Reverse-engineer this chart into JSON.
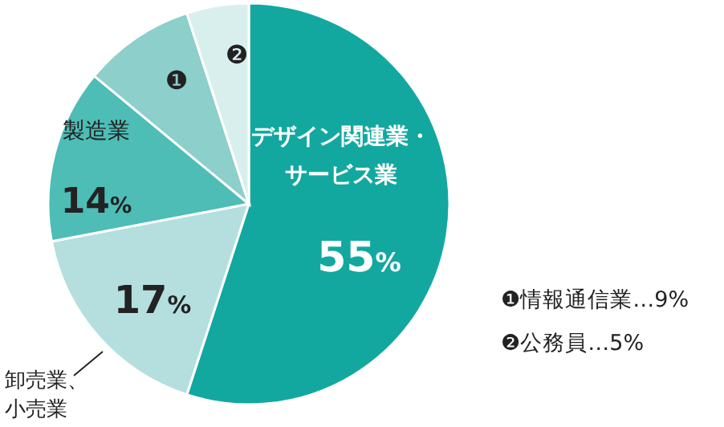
{
  "chart_data": {
    "type": "pie",
    "categories": [
      "デザイン関連業・サービス業",
      "卸売業、小売業",
      "製造業",
      "❶",
      "❷"
    ],
    "values": [
      55,
      17,
      14,
      9,
      5
    ],
    "colors": [
      "#12a8a0",
      "#b5dfdf",
      "#4dbdb6",
      "#8ccfcb",
      "#d9efee"
    ],
    "value_labels": [
      "55%",
      "17%",
      "14%",
      null,
      null
    ],
    "annotations": [
      "❶情報通信業…9%",
      "❷公務員…5%"
    ]
  }
}
